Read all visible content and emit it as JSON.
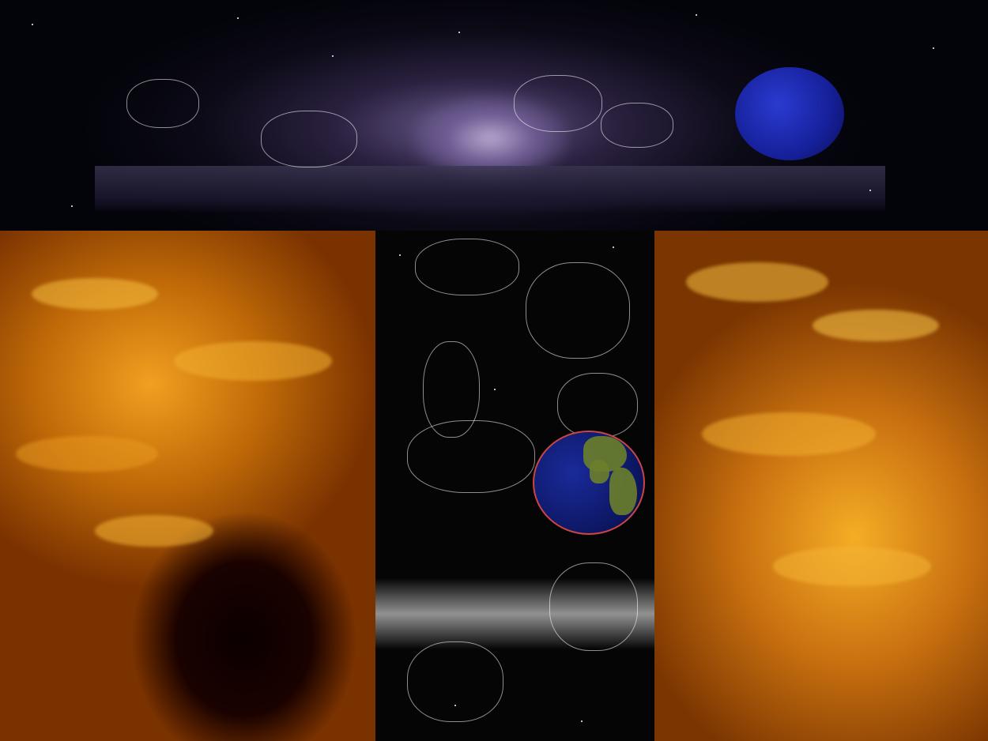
{
  "scene": {
    "panels": [
      "sky-band",
      "sun-left",
      "constellation-panel",
      "sun-right"
    ],
    "colors": {
      "sky": "#0b0a16",
      "solar_surface": "#e08a10",
      "earth_ocean": "#16209a",
      "earth_land": "#6b7f2a",
      "earth_rim": "#cc4444"
    },
    "icons": [
      "earth-icon",
      "constellation-figures",
      "milky-way"
    ]
  }
}
